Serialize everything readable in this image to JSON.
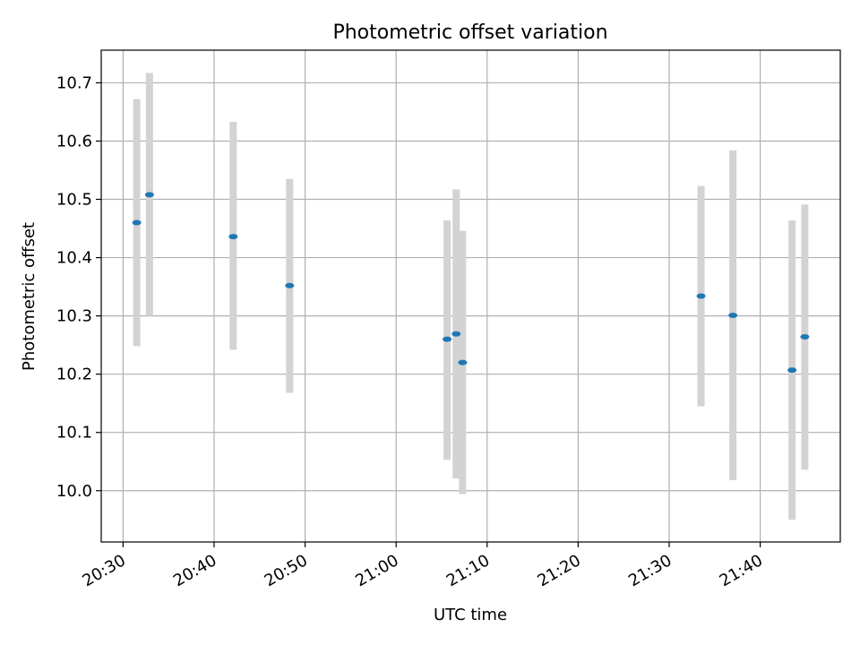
{
  "chart_data": {
    "type": "scatter",
    "title": "Photometric offset variation",
    "xlabel": "UTC time",
    "ylabel": "Photometric offset",
    "xlim": [
      "20:27:36",
      "21:48:48"
    ],
    "ylim": [
      9.912,
      10.756
    ],
    "xticks": [
      "20:30",
      "20:40",
      "20:50",
      "21:00",
      "21:10",
      "21:20",
      "21:30",
      "21:40"
    ],
    "yticks": [
      "10.0",
      "10.1",
      "10.2",
      "10.3",
      "10.4",
      "10.5",
      "10.6",
      "10.7"
    ],
    "grid": true,
    "series": [
      {
        "marker_color": "#1f77b4",
        "errorbar_color": "#d3d3d3",
        "points": [
          {
            "t": "20:31:30",
            "y": 10.46,
            "low": 10.248,
            "high": 10.672
          },
          {
            "t": "20:32:54",
            "y": 10.508,
            "low": 10.3,
            "high": 10.717
          },
          {
            "t": "20:42:06",
            "y": 10.436,
            "low": 10.242,
            "high": 10.633
          },
          {
            "t": "20:48:18",
            "y": 10.352,
            "low": 10.168,
            "high": 10.535
          },
          {
            "t": "21:05:36",
            "y": 10.26,
            "low": 10.053,
            "high": 10.464
          },
          {
            "t": "21:06:36",
            "y": 10.269,
            "low": 10.021,
            "high": 10.517
          },
          {
            "t": "21:07:18",
            "y": 10.22,
            "low": 9.994,
            "high": 10.446
          },
          {
            "t": "21:33:30",
            "y": 10.334,
            "low": 10.145,
            "high": 10.523
          },
          {
            "t": "21:37:00",
            "y": 10.301,
            "low": 10.018,
            "high": 10.584
          },
          {
            "t": "21:43:30",
            "y": 10.207,
            "low": 9.95,
            "high": 10.464
          },
          {
            "t": "21:44:54",
            "y": 10.264,
            "low": 10.036,
            "high": 10.491
          }
        ]
      }
    ]
  }
}
